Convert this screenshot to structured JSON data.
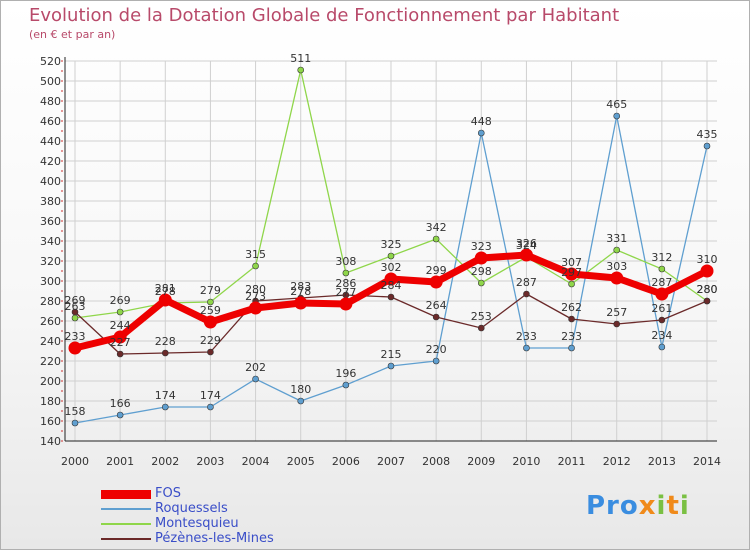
{
  "title": "Evolution de la Dotation Globale de Fonctionnement par Habitant",
  "subtitle": "(en € et par an)",
  "logo": {
    "text": "Proxiti"
  },
  "chart_data": {
    "type": "line",
    "x": [
      "2000",
      "2001",
      "2002",
      "2003",
      "2004",
      "2005",
      "2006",
      "2007",
      "2008",
      "2009",
      "2010",
      "2011",
      "2012",
      "2013",
      "2014"
    ],
    "ylim": [
      140,
      520
    ],
    "yticks": [
      140,
      160,
      180,
      200,
      220,
      240,
      260,
      280,
      300,
      320,
      340,
      360,
      380,
      400,
      420,
      440,
      460,
      480,
      500,
      520
    ],
    "grid": true,
    "legend_position": "bottom-left",
    "series": [
      {
        "name": "Roquessels",
        "color": "#5f9fd0",
        "values": [
          158,
          166,
          174,
          174,
          202,
          180,
          196,
          215,
          220,
          448,
          233,
          233,
          465,
          234,
          435
        ],
        "labels": [
          "158",
          "166",
          "174",
          "174",
          "202",
          "180",
          "196",
          "215",
          "220",
          "448",
          "233",
          "233",
          "465",
          "234",
          "435"
        ]
      },
      {
        "name": "Montesquieu",
        "color": "#8fd64a",
        "values": [
          263,
          269,
          278,
          279,
          315,
          511,
          308,
          325,
          342,
          298,
          324,
          297,
          331,
          312,
          280
        ],
        "labels": [
          "263",
          "269",
          "278",
          "279",
          "315",
          "511",
          "308",
          "325",
          "342",
          "298",
          "324",
          "297",
          "331",
          "312",
          "280"
        ]
      },
      {
        "name": "Pézènes-les-Mines",
        "color": "#6b2a2a",
        "values": [
          269,
          227,
          228,
          229,
          280,
          283,
          286,
          284,
          264,
          253,
          287,
          262,
          257,
          261,
          280
        ],
        "labels": [
          "269",
          "227",
          "228",
          "229",
          "280",
          "283",
          "286",
          "284",
          "264",
          "253",
          "287",
          "262",
          "257",
          "261",
          "280"
        ]
      },
      {
        "name": "FOS",
        "color": "#ee0000",
        "values": [
          233,
          244,
          281,
          259,
          273,
          278,
          277,
          302,
          299,
          323,
          326,
          307,
          303,
          287,
          310
        ],
        "labels": [
          "233",
          "244",
          "281",
          "259",
          "273",
          "278",
          "277",
          "302",
          "299",
          "323",
          "326",
          "307",
          "303",
          "287",
          "310"
        ]
      }
    ],
    "legend_order": [
      "FOS",
      "Roquessels",
      "Montesquieu",
      "Pézènes-les-Mines"
    ]
  }
}
